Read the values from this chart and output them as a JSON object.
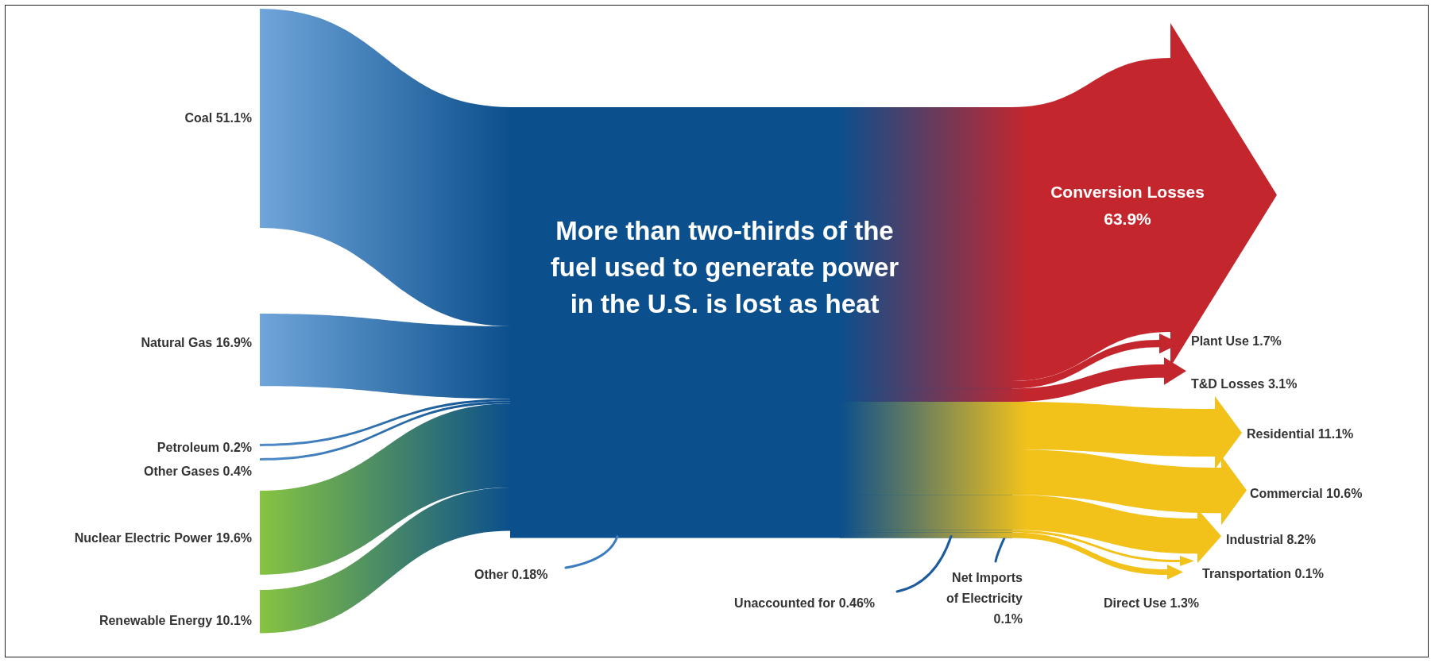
{
  "chart_data": {
    "type": "other",
    "annotations": [
      "More than two-thirds of the fuel used to generate power in the U.S. is lost as heat"
    ],
    "categories": [
      "Coal",
      "Natural Gas",
      "Petroleum",
      "Other Gases",
      "Nuclear Electric Power",
      "Renewable Energy",
      "Other",
      "Net Imports of Electricity",
      "Conversion Losses",
      "Plant Use",
      "T&D Losses",
      "Residential",
      "Commercial",
      "Industrial",
      "Transportation",
      "Direct Use",
      "Unaccounted for"
    ],
    "series": [
      {
        "color": "#0b4f8c",
        "values": [
          51.1,
          16.9,
          0.2,
          0.4,
          19.6,
          10.1,
          0.18,
          0.1,
          null,
          null,
          null,
          null,
          null,
          null,
          null,
          null,
          null
        ],
        "value_labels": [
          "51.1%",
          "16.9%",
          "0.2%",
          "0.4%",
          "19.6%",
          "10.1%",
          "0.18%",
          "0.1%",
          null,
          null,
          null,
          null,
          null,
          null,
          null,
          null,
          null
        ],
        "colors": [
          "#6fa5da",
          "#6fa5da",
          "#4f8cc9",
          "#4f8cc9",
          "#86c441",
          "#86c441",
          "#3b7bbf",
          "#1d5c9c",
          null,
          null,
          null,
          null,
          null,
          null,
          null,
          null,
          null
        ]
      },
      {
        "color": "#0b4f8c",
        "values": [
          null,
          null,
          null,
          null,
          null,
          null,
          null,
          null,
          63.9,
          1.7,
          3.1,
          11.1,
          10.6,
          8.2,
          0.1,
          1.3,
          0.46
        ],
        "value_labels": [
          null,
          null,
          null,
          null,
          null,
          null,
          null,
          null,
          "63.9%",
          "1.7%",
          "3.1%",
          "11.1%",
          "10.6%",
          "8.2%",
          "0.1%",
          "1.3%",
          "0.46%"
        ],
        "colors": [
          null,
          null,
          null,
          null,
          null,
          null,
          null,
          null,
          "#c4262e",
          "#c4262e",
          "#c4262e",
          "#f2c21b",
          "#f2c21b",
          "#f2c21b",
          "#f2c21b",
          "#f2c21b",
          "#1d5c9c"
        ]
      }
    ]
  }
}
